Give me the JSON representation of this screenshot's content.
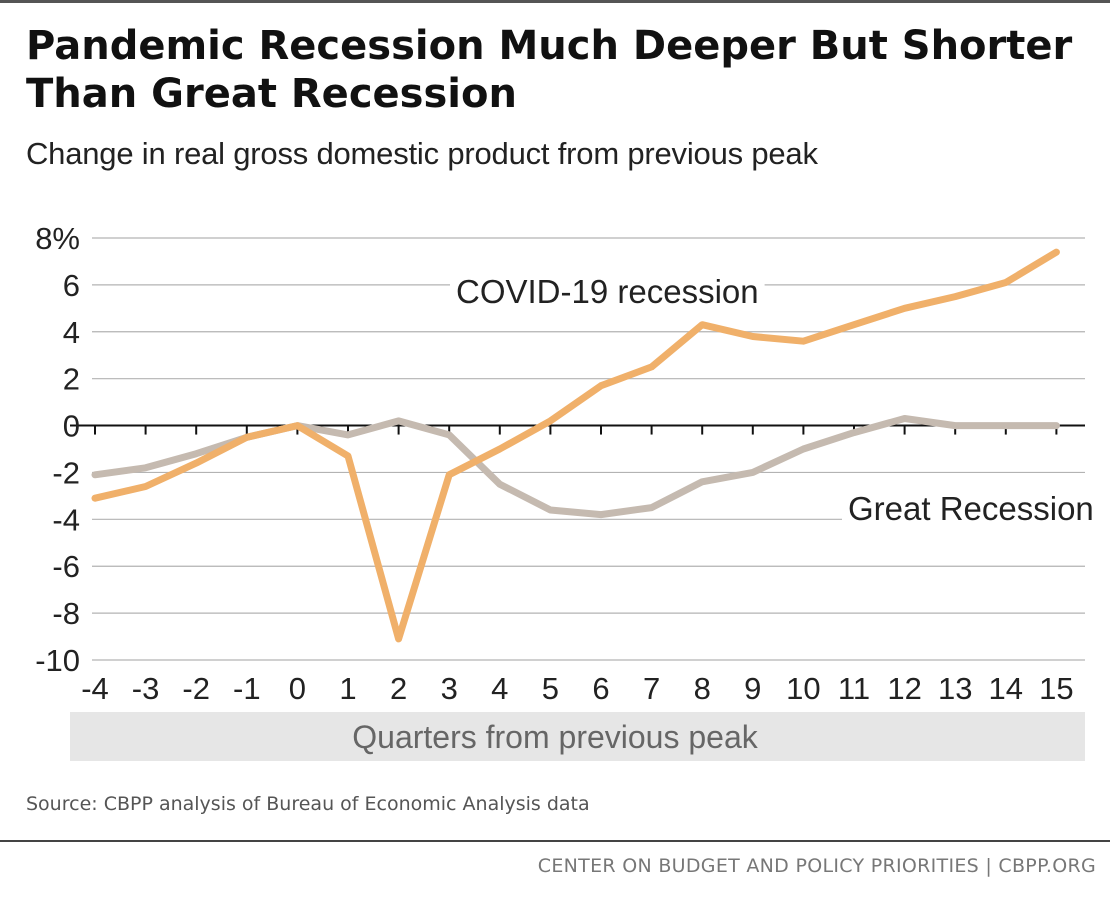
{
  "header": {
    "title": "Pandemic Recession Much Deeper But Shorter Than Great Recession",
    "subtitle": "Change in real gross domestic product from previous peak"
  },
  "chart_data": {
    "type": "line",
    "x": [
      -4,
      -3,
      -2,
      -1,
      0,
      1,
      2,
      3,
      4,
      5,
      6,
      7,
      8,
      9,
      10,
      11,
      12,
      13,
      14,
      15
    ],
    "x_tick_labels": [
      "-4",
      "-3",
      "-2",
      "-1",
      "0",
      "1",
      "2",
      "3",
      "4",
      "5",
      "6",
      "7",
      "8",
      "9",
      "10",
      "11",
      "12",
      "13",
      "14",
      "15"
    ],
    "xlabel": "Quarters from previous peak",
    "ylabel": "",
    "ylim": [
      -10,
      8
    ],
    "y_ticks": [
      8,
      6,
      4,
      2,
      0,
      -2,
      -4,
      -6,
      -8,
      -10
    ],
    "y_tick_labels": [
      "8%",
      "6",
      "4",
      "2",
      "0",
      "-2",
      "-4",
      "-6",
      "-8",
      "-10"
    ],
    "grid": true,
    "series": [
      {
        "name": "Great Recession",
        "color": "#c5bab0",
        "values": [
          -2.1,
          -1.8,
          -1.2,
          -0.5,
          0.0,
          -0.4,
          0.2,
          -0.4,
          -2.5,
          -3.6,
          -3.8,
          -3.5,
          -2.4,
          -2.0,
          -1.0,
          -0.3,
          0.3,
          0.0,
          0.0,
          0.0
        ]
      },
      {
        "name": "COVID-19 recession",
        "color": "#f0b06a",
        "values": [
          -3.1,
          -2.6,
          -1.6,
          -0.5,
          0.0,
          -1.3,
          -9.1,
          -2.1,
          -1.0,
          0.2,
          1.7,
          2.5,
          4.3,
          3.8,
          3.6,
          4.3,
          5.0,
          5.5,
          6.1,
          7.4
        ]
      }
    ]
  },
  "source": "Source: CBPP analysis of Bureau of Economic Analysis data",
  "footer": "CENTER ON BUDGET AND POLICY PRIORITIES | CBPP.ORG"
}
